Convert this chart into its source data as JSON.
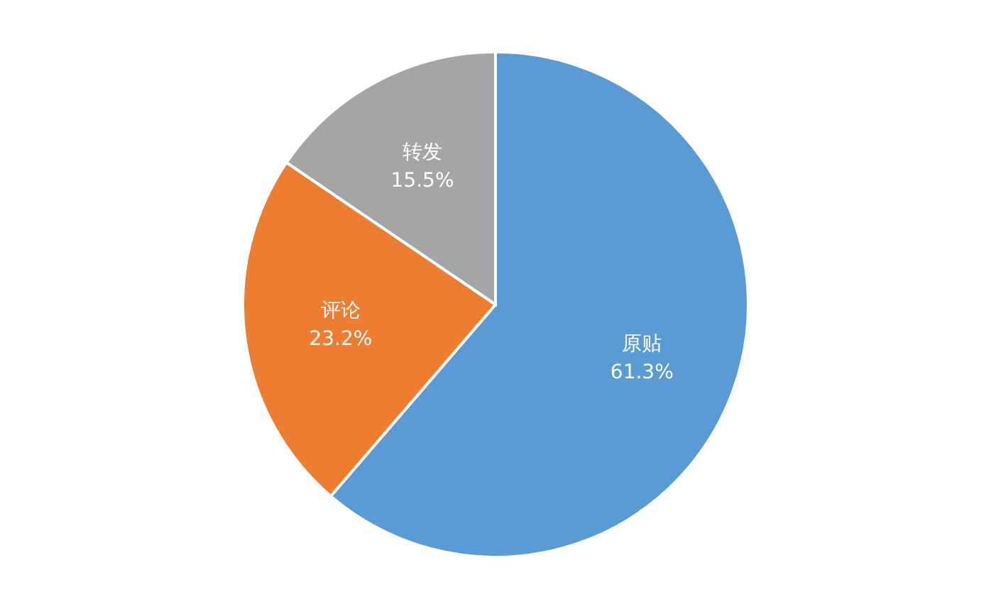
{
  "chart_data": {
    "type": "pie",
    "categories": [
      "原贴",
      "评论",
      "转发"
    ],
    "values": [
      61.3,
      23.2,
      15.5
    ],
    "colors": [
      "#5b9bd5",
      "#ed7d31",
      "#a5a5a5"
    ],
    "value_labels": [
      "61.3%",
      "23.2%",
      "15.5%"
    ]
  }
}
